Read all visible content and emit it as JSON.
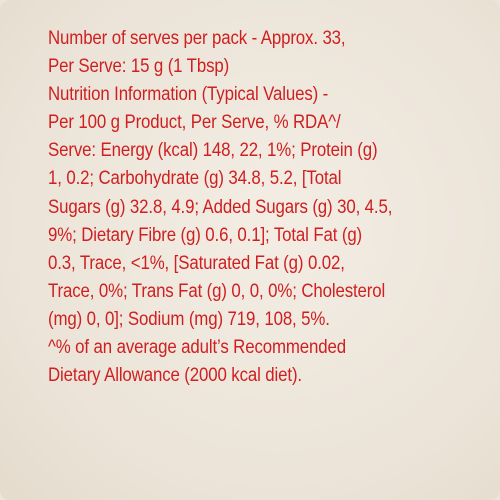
{
  "label": {
    "lines": [
      "Number of serves per pack - Approx. 33,",
      "Per Serve: 15 g (1 Tbsp)",
      "Nutrition Information (Typical Values) -",
      "Per 100 g Product, Per Serve, % RDA^/",
      "Serve: Energy (kcal) 148, 22, 1%; Protein (g)",
      "1, 0.2; Carbohydrate (g) 34.8, 5.2, [Total",
      "Sugars (g) 32.8, 4.9; Added Sugars (g) 30, 4.5,",
      "9%; Dietary Fibre (g) 0.6, 0.1]; Total Fat (g)",
      "0.3, Trace, <1%, [Saturated Fat (g) 0.02,",
      "Trace, 0%; Trans Fat (g) 0, 0, 0%; Cholesterol",
      "(mg) 0, 0]; Sodium (mg) 719, 108, 5%.",
      "^% of an average adult’s Recommended",
      "Dietary Allowance (2000 kcal diet)."
    ],
    "text_color": "#cf1f20",
    "background_color": "#ece5da"
  }
}
